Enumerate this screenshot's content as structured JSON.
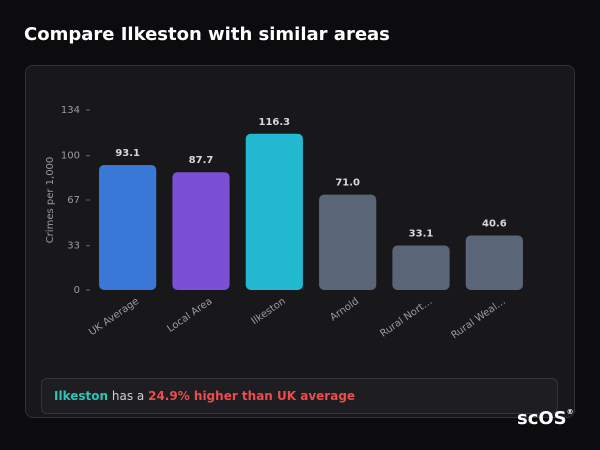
{
  "title": "Compare Ilkeston with similar areas",
  "chart_data": {
    "type": "bar",
    "y_label": "Crimes per 1,000",
    "categories": [
      "UK Average",
      "Local Area",
      "Ilkeston",
      "Arnold",
      "Rural Nort…",
      "Rural Weal…"
    ],
    "values": [
      93.1,
      87.7,
      116.3,
      71.0,
      33.1,
      40.6
    ],
    "value_labels": [
      "93.1",
      "87.7",
      "116.3",
      "71.0",
      "33.1",
      "40.6"
    ],
    "colors": [
      "#3a78d8",
      "#7b4fd6",
      "#22b8cf",
      "#5a6577",
      "#5a6577",
      "#5a6577"
    ],
    "ylim": [
      0,
      134
    ],
    "yticks": [
      0,
      33,
      67,
      100,
      134
    ],
    "grid": false
  },
  "summary": {
    "area": "Ilkeston",
    "text": "has a",
    "highlight": "24.9% higher than UK average"
  },
  "logo": "scOS"
}
